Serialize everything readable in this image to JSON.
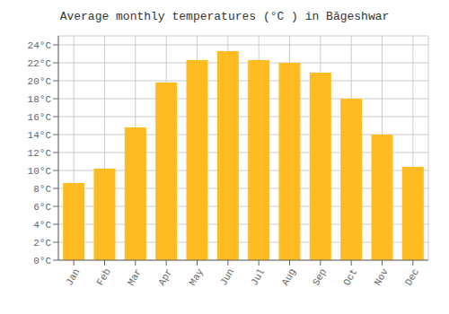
{
  "chart_data": {
    "type": "bar",
    "title": "Average monthly temperatures (°C ) in Bāgeshwar",
    "categories": [
      "Jan",
      "Feb",
      "Mar",
      "Apr",
      "May",
      "Jun",
      "Jul",
      "Aug",
      "Sep",
      "Oct",
      "Nov",
      "Dec"
    ],
    "values": [
      8.6,
      10.2,
      14.8,
      19.8,
      22.3,
      23.3,
      22.3,
      22.0,
      20.9,
      18.0,
      14.0,
      10.4
    ],
    "color": "#FFBB22",
    "ylim": [
      0,
      25
    ],
    "yticks": [
      {
        "value": 0,
        "label": "0°C"
      },
      {
        "value": 2,
        "label": "2°C"
      },
      {
        "value": 4,
        "label": "4°C"
      },
      {
        "value": 6,
        "label": "6°C"
      },
      {
        "value": 8,
        "label": "8°C"
      },
      {
        "value": 10,
        "label": "10°C"
      },
      {
        "value": 12,
        "label": "12°C"
      },
      {
        "value": 14,
        "label": "14°C"
      },
      {
        "value": 16,
        "label": "16°C"
      },
      {
        "value": 18,
        "label": "18°C"
      },
      {
        "value": 20,
        "label": "20°C"
      },
      {
        "value": 22,
        "label": "22°C"
      },
      {
        "value": 24,
        "label": "24°C"
      }
    ],
    "grid": true
  }
}
